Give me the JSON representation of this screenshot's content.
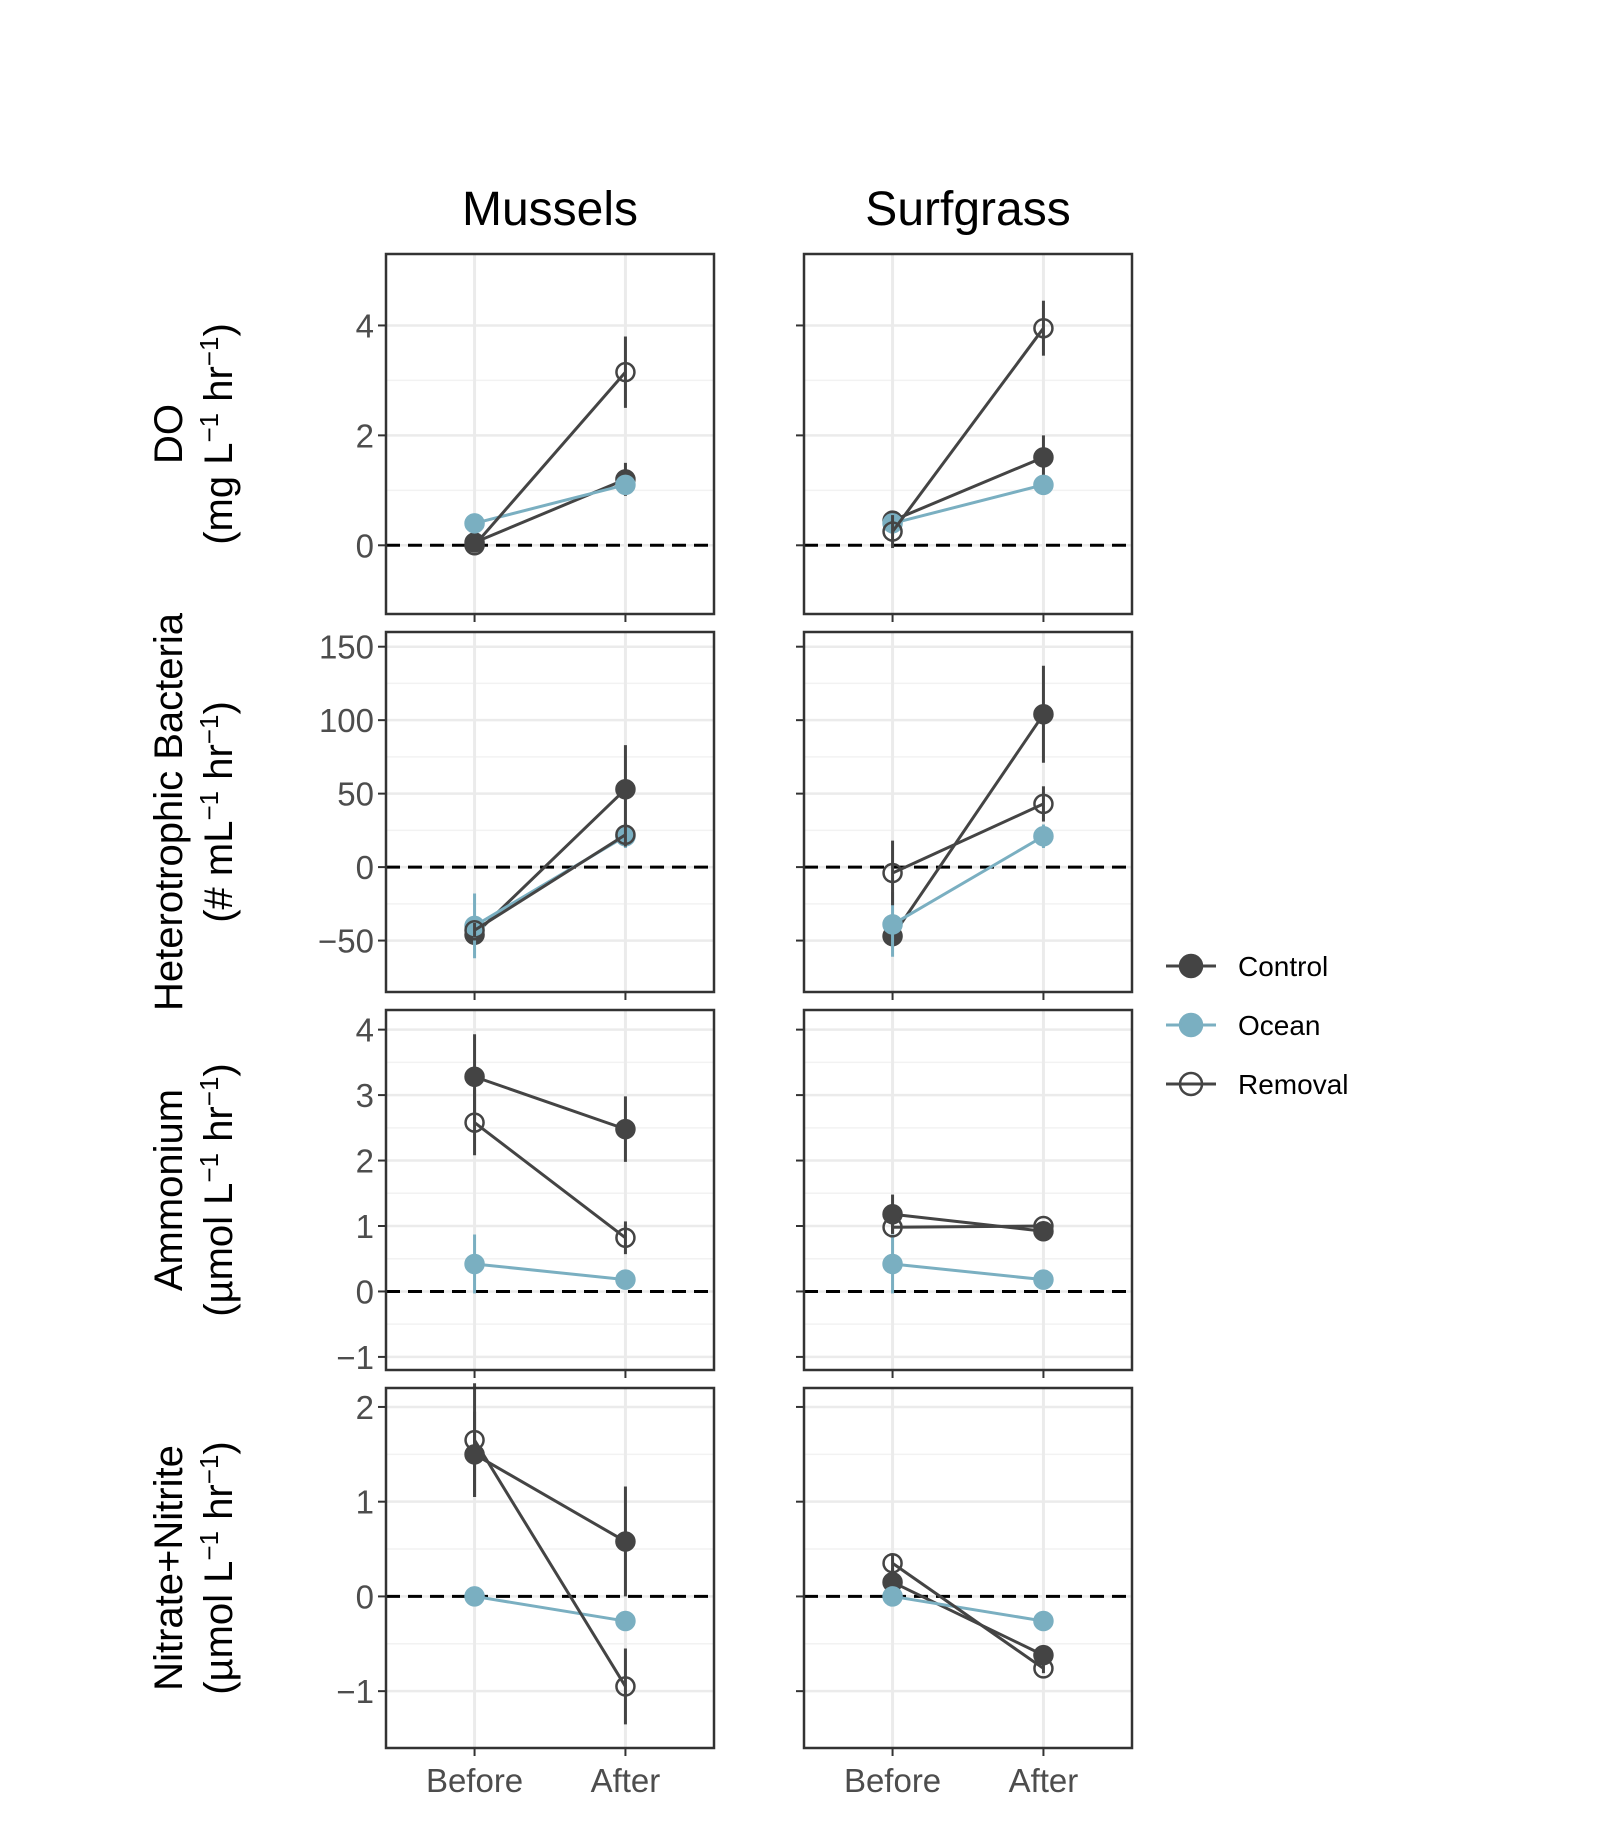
{
  "chart_data": {
    "type": "line",
    "columns": [
      "Mussels",
      "Surfgrass"
    ],
    "x_categories": [
      "Before",
      "After"
    ],
    "series": [
      {
        "name": "Control",
        "color": "#444444",
        "marker": "filled-circle"
      },
      {
        "name": "Ocean",
        "color": "#7aafc1",
        "marker": "filled-circle"
      },
      {
        "name": "Removal",
        "color": "#444444",
        "marker": "open-circle"
      }
    ],
    "legend_position": "right",
    "reference_line": {
      "y": 0,
      "style": "dashed"
    },
    "rows": [
      {
        "ylabel_lines": [
          "DO",
          "(mg L^-1 hr^-1)"
        ],
        "ylim": [
          -1.25,
          5.3
        ],
        "yticks": [
          0,
          2,
          4
        ],
        "ytick_labels": [
          "0",
          "2",
          "4"
        ],
        "panels": {
          "Mussels": {
            "Control": {
              "values": [
                0.05,
                1.2
              ],
              "errors": [
                0.1,
                0.3
              ]
            },
            "Ocean": {
              "values": [
                0.4,
                1.1
              ],
              "errors": [
                0.0,
                0.1
              ]
            },
            "Removal": {
              "values": [
                0.0,
                3.15
              ],
              "errors": [
                0.0,
                0.65
              ]
            }
          },
          "Surfgrass": {
            "Control": {
              "values": [
                0.45,
                1.6
              ],
              "errors": [
                0.15,
                0.4
              ]
            },
            "Ocean": {
              "values": [
                0.4,
                1.1
              ],
              "errors": [
                0.0,
                0.0
              ]
            },
            "Removal": {
              "values": [
                0.25,
                3.95
              ],
              "errors": [
                0.3,
                0.5
              ]
            }
          }
        }
      },
      {
        "ylabel_lines": [
          "Heterotrophic Bacteria",
          "(# mL^-1 hr^-1)"
        ],
        "ylim": [
          -85,
          160
        ],
        "yticks": [
          -50,
          0,
          50,
          100,
          150
        ],
        "ytick_labels": [
          "−50",
          "0",
          "50",
          "100",
          "150"
        ],
        "panels": {
          "Mussels": {
            "Control": {
              "values": [
                -46,
                53
              ],
              "errors": [
                5,
                30
              ]
            },
            "Ocean": {
              "values": [
                -40,
                21
              ],
              "errors": [
                22,
                8
              ]
            },
            "Removal": {
              "values": [
                -43,
                22
              ],
              "errors": [
                5,
                8
              ]
            }
          },
          "Surfgrass": {
            "Control": {
              "values": [
                -47,
                104
              ],
              "errors": [
                5,
                33
              ]
            },
            "Ocean": {
              "values": [
                -39,
                21
              ],
              "errors": [
                22,
                8
              ]
            },
            "Removal": {
              "values": [
                -4,
                43
              ],
              "errors": [
                22,
                12
              ]
            }
          }
        }
      },
      {
        "ylabel_lines": [
          "Ammonium",
          "(µmol L^-1 hr^-1)"
        ],
        "ylim": [
          -1.2,
          4.3
        ],
        "yticks": [
          -1,
          0,
          1,
          2,
          3,
          4
        ],
        "ytick_labels": [
          "−1",
          "0",
          "1",
          "2",
          "3",
          "4"
        ],
        "panels": {
          "Mussels": {
            "Control": {
              "values": [
                3.28,
                2.48
              ],
              "errors": [
                0.65,
                0.5
              ]
            },
            "Ocean": {
              "values": [
                0.42,
                0.18
              ],
              "errors": [
                0.45,
                0.05
              ]
            },
            "Removal": {
              "values": [
                2.58,
                0.82
              ],
              "errors": [
                0.5,
                0.25
              ]
            }
          },
          "Surfgrass": {
            "Control": {
              "values": [
                1.18,
                0.92
              ],
              "errors": [
                0.3,
                0.12
              ]
            },
            "Ocean": {
              "values": [
                0.42,
                0.18
              ],
              "errors": [
                0.45,
                0.05
              ]
            },
            "Removal": {
              "values": [
                0.98,
                1.0
              ],
              "errors": [
                0.1,
                0.05
              ]
            }
          }
        }
      },
      {
        "ylabel_lines": [
          "Nitrate+Nitrite",
          "(µmol L^-1 hr^-1)"
        ],
        "ylim": [
          -1.6,
          2.2
        ],
        "yticks": [
          -1,
          0,
          1,
          2
        ],
        "ytick_labels": [
          "−1",
          "0",
          "1",
          "2"
        ],
        "panels": {
          "Mussels": {
            "Control": {
              "values": [
                1.5,
                0.58
              ],
              "errors": [
                0.45,
                0.58
              ]
            },
            "Ocean": {
              "values": [
                0.0,
                -0.26
              ],
              "errors": [
                0.05,
                0.05
              ]
            },
            "Removal": {
              "values": [
                1.65,
                -0.95
              ],
              "errors": [
                0.6,
                0.4
              ]
            }
          },
          "Surfgrass": {
            "Control": {
              "values": [
                0.15,
                -0.62
              ],
              "errors": [
                0.15,
                0.1
              ]
            },
            "Ocean": {
              "values": [
                0.0,
                -0.26
              ],
              "errors": [
                0.05,
                0.05
              ]
            },
            "Removal": {
              "values": [
                0.35,
                -0.76
              ],
              "errors": [
                0.1,
                0.05
              ]
            }
          }
        }
      }
    ]
  }
}
